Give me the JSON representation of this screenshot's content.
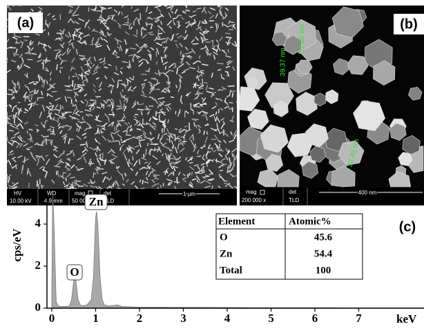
{
  "panel_a": {
    "label": "(a)",
    "info_bar": [
      {
        "name": "HV",
        "value": "10.00 kV"
      },
      {
        "name": "WD",
        "value": "4.9 mm"
      },
      {
        "name": "mag",
        "value": "50 000 x"
      },
      {
        "name": "det",
        "value": "TLD"
      }
    ],
    "scale_bar": "1 µm"
  },
  "panel_b": {
    "label": "(b)",
    "info_bar": [
      {
        "name": "mag",
        "value": "200 000 x"
      },
      {
        "name": "det",
        "value": "TLD"
      }
    ],
    "scale_bar": "400 nm",
    "measurements": [
      "39.37 nm",
      "37.65 nm",
      "32.49 nm"
    ]
  },
  "chart_data": {
    "type": "area",
    "panel_label": "(c)",
    "y_label": "cps/eV",
    "x_label": "keV",
    "x": [
      0,
      0.02,
      0.05,
      0.1,
      0.15,
      0.2,
      0.3,
      0.4,
      0.45,
      0.5,
      0.52,
      0.55,
      0.6,
      0.65,
      0.7,
      0.8,
      0.9,
      0.95,
      1.0,
      1.02,
      1.05,
      1.1,
      1.15,
      1.2,
      1.3,
      1.5,
      1.6,
      2,
      3,
      4,
      5,
      6,
      7,
      8.5
    ],
    "values": [
      0.5,
      5.4,
      4,
      0.3,
      0.1,
      0.08,
      0.08,
      0.1,
      0.4,
      1.3,
      1.6,
      1.3,
      0.4,
      0.15,
      0.12,
      0.15,
      0.4,
      1.5,
      4.3,
      4.6,
      4.0,
      1.5,
      0.4,
      0.15,
      0.1,
      0.15,
      0.08,
      0.05,
      0.04,
      0.03,
      0.02,
      0.02,
      0.01,
      0.01
    ],
    "color": "#a8a8a8",
    "xlim": [
      -0.1,
      8.5
    ],
    "ylim": [
      0,
      5.4
    ],
    "xticks": [
      0,
      1,
      2,
      3,
      4,
      5,
      6,
      7
    ],
    "yticks": [
      0,
      2,
      4
    ],
    "annotations": [
      {
        "text": "O",
        "x": 0.52
      },
      {
        "text": "Zn",
        "x": 1.01
      }
    ]
  },
  "table": {
    "header": [
      "Element",
      "Atomic%"
    ],
    "rows": [
      [
        "O",
        45.6
      ],
      [
        "Zn",
        54.4
      ],
      [
        "Total",
        100
      ]
    ]
  }
}
